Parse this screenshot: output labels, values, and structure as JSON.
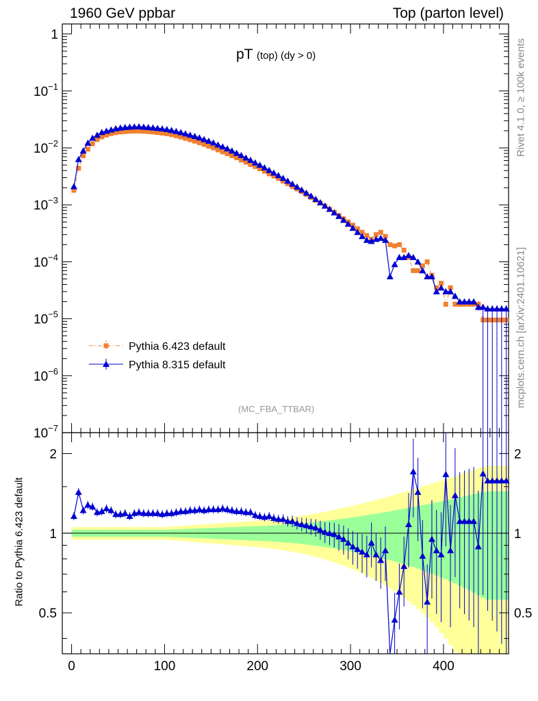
{
  "header": {
    "left": "1960 GeV ppbar",
    "right": "Top (parton level)"
  },
  "plot_title": {
    "main": "pT",
    "sub": "(top) (dy > 0)"
  },
  "side_text": {
    "rivet": "Rivet 4.1.0, ≥ 100k events",
    "mcplots": "mcplots.cern.ch [arXiv:2401.10621]"
  },
  "analysis_label": "(MC_FBA_TTBAR)",
  "ratio_ylabel": "Ratio to Pythia 6.423 default",
  "colors": {
    "pythia6": "#f08030",
    "pythia8": "#0000d0",
    "band_green": "#99ff99",
    "band_yellow": "#ffff99"
  },
  "chart_data": {
    "type": "scatter",
    "x_axis": {
      "range": [
        -10,
        470
      ],
      "ticks": [
        0,
        100,
        200,
        300,
        400
      ],
      "tick_labels": [
        "0",
        "100",
        "200",
        "300",
        "400"
      ]
    },
    "main_y_axis": {
      "scale": "log",
      "range": [
        1e-07,
        1.5
      ],
      "tick_labels": [
        "1",
        "10^-1",
        "10^-2",
        "10^-3",
        "10^-4",
        "10^-5",
        "10^-6",
        "10^-7"
      ]
    },
    "ratio_y_axis": {
      "scale": "log",
      "range": [
        0.35,
        2.4
      ],
      "ticks": [
        0.5,
        1,
        2
      ],
      "tick_labels": [
        "0.5",
        "1",
        "2"
      ]
    },
    "x": [
      2.5,
      7.5,
      12.5,
      17.5,
      22.5,
      27.5,
      32.5,
      37.5,
      42.5,
      47.5,
      52.5,
      57.5,
      62.5,
      67.5,
      72.5,
      77.5,
      82.5,
      87.5,
      92.5,
      97.5,
      102.5,
      107.5,
      112.5,
      117.5,
      122.5,
      127.5,
      132.5,
      137.5,
      142.5,
      147.5,
      152.5,
      157.5,
      162.5,
      167.5,
      172.5,
      177.5,
      182.5,
      187.5,
      192.5,
      197.5,
      202.5,
      207.5,
      212.5,
      217.5,
      222.5,
      227.5,
      232.5,
      237.5,
      242.5,
      247.5,
      252.5,
      257.5,
      262.5,
      267.5,
      272.5,
      277.5,
      282.5,
      287.5,
      292.5,
      297.5,
      302.5,
      307.5,
      312.5,
      317.5,
      322.5,
      327.5,
      332.5,
      337.5,
      342.5,
      347.5,
      352.5,
      357.5,
      362.5,
      367.5,
      372.5,
      377.5,
      382.5,
      387.5,
      392.5,
      397.5,
      402.5,
      407.5,
      412.5,
      417.5,
      422.5,
      427.5,
      432.5,
      437.5,
      442.5,
      447.5,
      452.5,
      457.5,
      462.5,
      467.5
    ],
    "series": [
      {
        "name": "Pythia 6.423 default",
        "marker": "square",
        "line": "dash-dot",
        "values": [
          0.0018,
          0.0044,
          0.0073,
          0.0095,
          0.0118,
          0.014,
          0.0156,
          0.0168,
          0.0178,
          0.0185,
          0.019,
          0.0193,
          0.0196,
          0.0197,
          0.0197,
          0.0196,
          0.0193,
          0.019,
          0.0186,
          0.0182,
          0.0177,
          0.0171,
          0.0163,
          0.0155,
          0.0147,
          0.0139,
          0.0131,
          0.0123,
          0.0115,
          0.0107,
          0.01,
          0.0092,
          0.0085,
          0.0079,
          0.0073,
          0.0067,
          0.0061,
          0.0056,
          0.0051,
          0.0047,
          0.0043,
          0.0039,
          0.0035,
          0.0032,
          0.0029,
          0.0026,
          0.00235,
          0.0021,
          0.0019,
          0.0017,
          0.00152,
          0.00135,
          0.0012,
          0.00107,
          0.00095,
          0.00084,
          0.00074,
          0.00065,
          0.00057,
          0.0005,
          0.00044,
          0.00038,
          0.00033,
          0.00029,
          0.00025,
          0.0003,
          0.00033,
          0.00028,
          0.0002,
          0.00019,
          0.0002,
          0.00016,
          0.00012,
          7e-05,
          7e-05,
          8.5e-05,
          0.0001,
          5.8e-05,
          3.5e-05,
          4.2e-05,
          1.8e-05,
          3.5e-05,
          1.8e-05,
          1.8e-05,
          1.8e-05,
          1.8e-05,
          1.8e-05,
          1.8e-05,
          9.5e-06,
          9.5e-06,
          9.5e-06,
          9.5e-06,
          9.5e-06,
          9.5e-06
        ]
      },
      {
        "name": "Pythia 8.315 default",
        "marker": "triangle",
        "line": "solid",
        "values": [
          0.0021,
          0.0063,
          0.0089,
          0.0122,
          0.0149,
          0.0168,
          0.0188,
          0.0198,
          0.0208,
          0.0219,
          0.0225,
          0.023,
          0.0233,
          0.0235,
          0.0236,
          0.0233,
          0.023,
          0.0226,
          0.0222,
          0.0217,
          0.0211,
          0.0204,
          0.0196,
          0.0187,
          0.0178,
          0.0169,
          0.016,
          0.0151,
          0.0141,
          0.0132,
          0.0123,
          0.0113,
          0.0105,
          0.0097,
          0.0089,
          0.0081,
          0.0074,
          0.0067,
          0.0061,
          0.0055,
          0.005,
          0.0045,
          0.00405,
          0.00365,
          0.00328,
          0.00294,
          0.00262,
          0.00233,
          0.00207,
          0.00183,
          0.00162,
          0.00143,
          0.00126,
          0.0011,
          0.00096,
          0.00084,
          0.00073,
          0.00063,
          0.00054,
          0.00046,
          0.00039,
          0.00033,
          0.00028,
          0.00024,
          0.00023,
          0.00025,
          0.00026,
          0.00024,
          5.5e-05,
          9e-05,
          0.00012,
          0.00012,
          0.00013,
          0.00012,
          0.0001,
          7e-05,
          5.5e-05,
          5.5e-05,
          3e-05,
          3.5e-05,
          3e-05,
          3e-05,
          2.5e-05,
          2e-05,
          2e-05,
          2e-05,
          2e-05,
          1.6e-05,
          1.6e-05,
          1.5e-05,
          1.5e-05,
          1.5e-05,
          1.5e-05,
          1.5e-05
        ]
      }
    ],
    "ratio": [
      1.16,
      1.43,
      1.22,
      1.28,
      1.26,
      1.2,
      1.21,
      1.24,
      1.22,
      1.18,
      1.18,
      1.19,
      1.16,
      1.19,
      1.2,
      1.19,
      1.19,
      1.19,
      1.19,
      1.18,
      1.19,
      1.19,
      1.2,
      1.21,
      1.21,
      1.22,
      1.22,
      1.23,
      1.22,
      1.23,
      1.23,
      1.23,
      1.24,
      1.23,
      1.22,
      1.21,
      1.21,
      1.2,
      1.2,
      1.17,
      1.16,
      1.15,
      1.16,
      1.14,
      1.13,
      1.13,
      1.11,
      1.11,
      1.09,
      1.08,
      1.07,
      1.06,
      1.05,
      1.03,
      1.01,
      1.0,
      0.99,
      0.97,
      0.95,
      0.92,
      0.89,
      0.87,
      0.85,
      0.83,
      0.92,
      0.83,
      0.79,
      0.86,
      0.28,
      0.47,
      0.6,
      0.75,
      1.08,
      1.71,
      1.43,
      0.82,
      0.55,
      0.95,
      0.86,
      0.83,
      1.67,
      0.86,
      1.39,
      1.11,
      1.11,
      1.11,
      1.11,
      0.89,
      1.68,
      1.58,
      1.58,
      1.58,
      1.58,
      1.58
    ]
  }
}
